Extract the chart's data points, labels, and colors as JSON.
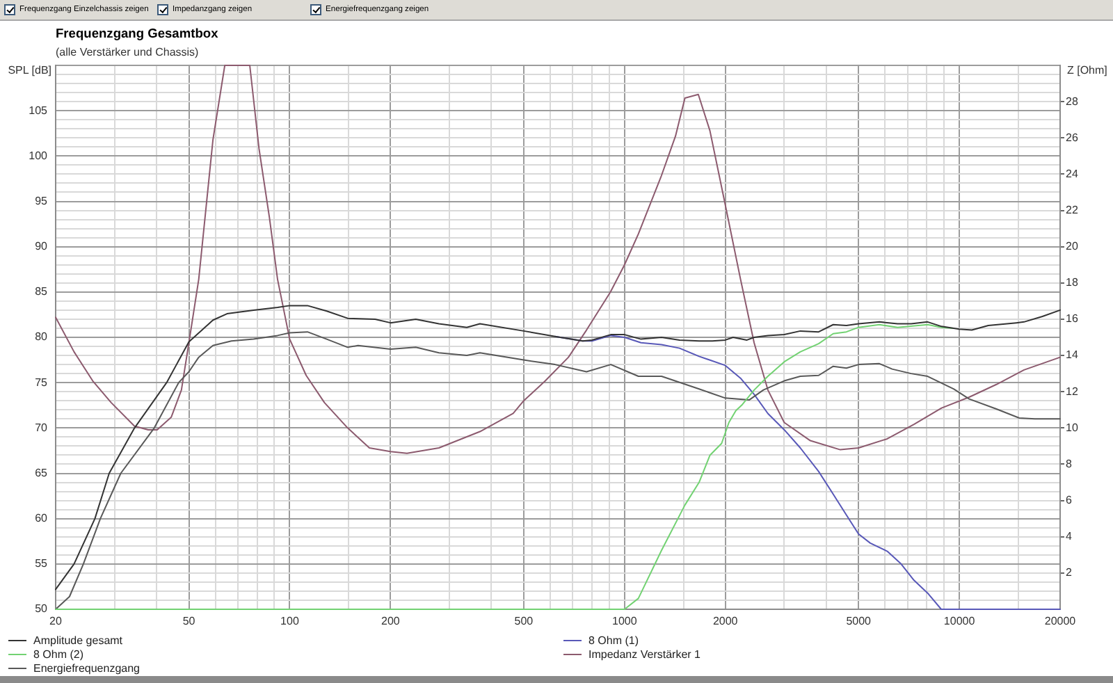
{
  "chart_data": {
    "type": "line",
    "title": "Frequenzgang Gesamtbox",
    "subtitle": "(alle Verstärker und Chassis)",
    "ylabel": "SPL [dB]",
    "y2label": "Z [Ohm]",
    "annotations": [
      "Frequenzgang Einzelchassis zeigen",
      "Impedanzgang zeigen",
      "Energiefrequenzgang zeigen"
    ],
    "log": "x",
    "grid": true,
    "legend": "bottom",
    "xlim": [
      20,
      20000
    ],
    "xticks": [
      20,
      {
        "value": 30,
        "label": null
      },
      {
        "value": 40,
        "label": null
      },
      50,
      {
        "value": 60,
        "label": null
      },
      {
        "value": 70,
        "label": null
      },
      {
        "value": 80,
        "label": null
      },
      {
        "value": 90,
        "label": null
      },
      100,
      {
        "value": 150,
        "label": null
      },
      200,
      {
        "value": 300,
        "label": null
      },
      {
        "value": 400,
        "label": null
      },
      500,
      {
        "value": 600,
        "label": null
      },
      {
        "value": 700,
        "label": null
      },
      {
        "value": 800,
        "label": null
      },
      {
        "value": 900,
        "label": null
      },
      1000,
      {
        "value": 1500,
        "label": null
      },
      2000,
      {
        "value": 3000,
        "label": null
      },
      {
        "value": 4000,
        "label": null
      },
      5000,
      {
        "value": 6000,
        "label": null
      },
      {
        "value": 7000,
        "label": null
      },
      {
        "value": 8000,
        "label": null
      },
      {
        "value": 9000,
        "label": null
      },
      10000,
      {
        "value": 15000,
        "label": null
      },
      20000
    ],
    "ylim": [
      50,
      110
    ],
    "yticks": [
      50,
      {
        "value": 51,
        "label": null
      },
      {
        "value": 52,
        "label": null
      },
      {
        "value": 53,
        "label": null
      },
      {
        "value": 54,
        "label": null
      },
      55,
      {
        "value": 56,
        "label": null
      },
      {
        "value": 57,
        "label": null
      },
      {
        "value": 58,
        "label": null
      },
      {
        "value": 59,
        "label": null
      },
      60,
      {
        "value": 61,
        "label": null
      },
      {
        "value": 62,
        "label": null
      },
      {
        "value": 63,
        "label": null
      },
      {
        "value": 64,
        "label": null
      },
      65,
      {
        "value": 66,
        "label": null
      },
      {
        "value": 67,
        "label": null
      },
      {
        "value": 68,
        "label": null
      },
      {
        "value": 69,
        "label": null
      },
      70,
      {
        "value": 71,
        "label": null
      },
      {
        "value": 72,
        "label": null
      },
      {
        "value": 73,
        "label": null
      },
      {
        "value": 74,
        "label": null
      },
      75,
      {
        "value": 76,
        "label": null
      },
      {
        "value": 77,
        "label": null
      },
      {
        "value": 78,
        "label": null
      },
      {
        "value": 79,
        "label": null
      },
      80,
      {
        "value": 81,
        "label": null
      },
      {
        "value": 82,
        "label": null
      },
      {
        "value": 83,
        "label": null
      },
      {
        "value": 84,
        "label": null
      },
      85,
      {
        "value": 86,
        "label": null
      },
      {
        "value": 87,
        "label": null
      },
      {
        "value": 88,
        "label": null
      },
      {
        "value": 89,
        "label": null
      },
      90,
      {
        "value": 91,
        "label": null
      },
      {
        "value": 92,
        "label": null
      },
      {
        "value": 93,
        "label": null
      },
      {
        "value": 94,
        "label": null
      },
      95,
      {
        "value": 96,
        "label": null
      },
      {
        "value": 97,
        "label": null
      },
      {
        "value": 98,
        "label": null
      },
      {
        "value": 99,
        "label": null
      },
      100,
      {
        "value": 101,
        "label": null
      },
      {
        "value": 102,
        "label": null
      },
      {
        "value": 103,
        "label": null
      },
      {
        "value": 104,
        "label": null
      },
      105,
      {
        "value": 106,
        "label": null
      },
      {
        "value": 107,
        "label": null
      },
      {
        "value": 108,
        "label": null
      },
      {
        "value": 109,
        "label": null
      },
      {
        "value": 110,
        "label": null
      }
    ],
    "y2lim": [
      0,
      30
    ],
    "y2ticks": [
      2,
      4,
      6,
      8,
      10,
      12,
      14,
      16,
      18,
      20,
      22,
      24,
      26,
      28
    ],
    "series": [
      {
        "name": "Amplitude gesamt",
        "color": "#333333",
        "x": [
          20,
          22.7,
          26.2,
          28.9,
          34.4,
          42.9,
          50,
          59,
          65,
          78,
          92,
          100,
          113,
          129,
          149,
          180,
          200,
          238,
          279,
          338,
          370,
          500,
          620,
          750,
          800,
          910,
          1000,
          1120,
          1290,
          1460,
          1670,
          1830,
          2000,
          2110,
          2320,
          2440,
          2680,
          3000,
          3350,
          3800,
          4200,
          4600,
          5000,
          5770,
          6540,
          7180,
          8040,
          8850,
          10000,
          10900,
          12200,
          14800,
          15600,
          17700,
          20000
        ],
        "values": [
          52.2,
          55,
          60,
          65,
          70,
          75,
          79.5,
          81.9,
          82.6,
          83,
          83.3,
          83.5,
          83.5,
          82.9,
          82.1,
          82,
          81.6,
          82,
          81.5,
          81.1,
          81.5,
          80.7,
          80.1,
          79.6,
          79.7,
          80.3,
          80.3,
          79.8,
          80,
          79.7,
          79.6,
          79.6,
          79.7,
          80,
          79.7,
          80,
          80.2,
          80.3,
          80.7,
          80.6,
          81.4,
          81.3,
          81.5,
          81.7,
          81.5,
          81.5,
          81.7,
          81.2,
          80.9,
          80.8,
          81.3,
          81.6,
          81.7,
          82.3,
          83
        ]
      },
      {
        "name": "8 Ohm (2)",
        "color": "#72d272",
        "x": [
          20,
          1000,
          1100,
          1290,
          1515,
          1670,
          1800,
          1950,
          2050,
          2150,
          2250,
          2440,
          2680,
          3000,
          3350,
          3800,
          4200,
          4600,
          5000,
          5770,
          6540,
          8040,
          8850,
          9600
        ],
        "values": [
          50,
          50,
          51.2,
          56.5,
          61.5,
          64,
          67,
          68.3,
          70.6,
          71.9,
          72.6,
          74.2,
          75.7,
          77.3,
          78.4,
          79.3,
          80.4,
          80.6,
          81.1,
          81.4,
          81.1,
          81.4,
          81.1,
          81
        ]
      },
      {
        "name": "Energiefrequenzgang",
        "color": "#585858",
        "x": [
          20,
          22,
          24.2,
          27.2,
          31.3,
          39.4,
          46.6,
          50,
          53.5,
          59,
          67,
          78,
          92,
          100,
          113,
          129,
          149,
          160,
          200,
          238,
          279,
          338,
          370,
          500,
          620,
          770,
          910,
          1100,
          1290,
          1670,
          2000,
          2360,
          2600,
          3000,
          3350,
          3800,
          4200,
          4600,
          5000,
          5770,
          6300,
          7180,
          8040,
          9630,
          10700,
          12900,
          15100,
          16800,
          20000
        ],
        "values": [
          50,
          51.4,
          55,
          60,
          65,
          70,
          75,
          76.2,
          77.8,
          79.1,
          79.6,
          79.8,
          80.2,
          80.5,
          80.6,
          79.8,
          78.9,
          79.1,
          78.7,
          78.9,
          78.3,
          78,
          78.3,
          77.5,
          77,
          76.2,
          77,
          75.7,
          75.7,
          74.3,
          73.3,
          73.1,
          74.2,
          75.2,
          75.7,
          75.8,
          76.8,
          76.6,
          77,
          77.1,
          76.5,
          76,
          75.7,
          74.3,
          73.2,
          72.1,
          71.1,
          71,
          71
        ]
      },
      {
        "name": "8 Ohm (1)",
        "color": "#5858b8",
        "x": [
          620,
          750,
          800,
          910,
          1000,
          1120,
          1290,
          1460,
          1670,
          2000,
          2220,
          2440,
          2680,
          3000,
          3350,
          3800,
          4200,
          4600,
          5000,
          5420,
          6090,
          6700,
          7320,
          8080,
          8830,
          20000
        ],
        "values": [
          80.1,
          79.6,
          79.6,
          80.2,
          80,
          79.4,
          79.2,
          78.8,
          77.9,
          76.9,
          75.5,
          73.7,
          71.6,
          69.8,
          67.8,
          65.2,
          62.7,
          60.4,
          58.3,
          57.3,
          56.4,
          55,
          53.2,
          51.7,
          50,
          50
        ]
      },
      {
        "name": "Impedanz Verstärker 1",
        "color": "#8c5a6e",
        "axis": "y2",
        "x": [
          20,
          22.7,
          25.8,
          29.3,
          34.4,
          37.8,
          40.2,
          44.3,
          47.5,
          50,
          53.5,
          59,
          64,
          76,
          81,
          87,
          92,
          100,
          112,
          127,
          149,
          173,
          200,
          224,
          279,
          370,
          465,
          500,
          580,
          680,
          770,
          908,
          1000,
          1100,
          1288,
          1420,
          1515,
          1661,
          1799,
          2000,
          2221,
          2438,
          2680,
          3000,
          3589,
          4410,
          5000,
          6090,
          7320,
          8850,
          10700,
          12900,
          15600,
          20000
        ],
        "values": [
          16.1,
          14.2,
          12.6,
          11.4,
          10.1,
          9.9,
          9.9,
          10.6,
          12.1,
          14.7,
          18.2,
          25.9,
          30,
          30,
          25.4,
          21.6,
          18.2,
          14.9,
          12.9,
          11.4,
          10,
          8.9,
          8.7,
          8.6,
          8.9,
          9.8,
          10.8,
          11.5,
          12.6,
          13.9,
          15.4,
          17.5,
          19,
          20.7,
          23.9,
          26.1,
          28.2,
          28.4,
          26.4,
          22.3,
          18.2,
          14.7,
          12.1,
          10.3,
          9.3,
          8.8,
          8.9,
          9.4,
          10.2,
          11.1,
          11.7,
          12.4,
          13.2,
          13.9
        ]
      }
    ]
  }
}
